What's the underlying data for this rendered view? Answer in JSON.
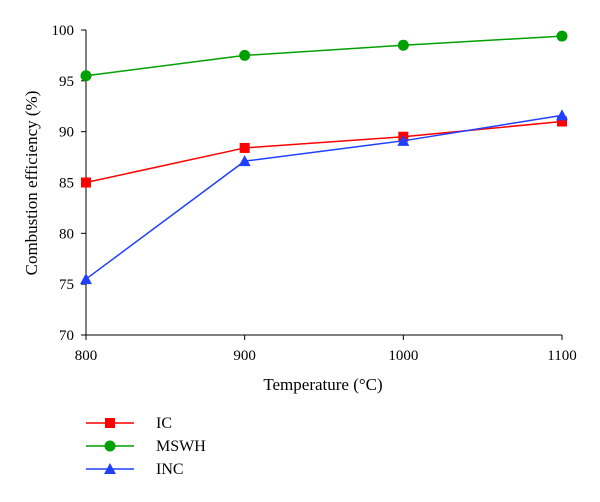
{
  "chart_data": {
    "type": "line",
    "title": "",
    "xlabel": "Temperature (°C)",
    "ylabel": "Combustion efficiency (%)",
    "x": [
      800,
      900,
      1000,
      1100
    ],
    "xlim": [
      800,
      1100
    ],
    "ylim": [
      70,
      100
    ],
    "xticks": [
      "800",
      "900",
      "1000",
      "1100"
    ],
    "yticks": [
      "70",
      "75",
      "80",
      "85",
      "90",
      "95",
      "100"
    ],
    "grid": false,
    "legend_position": "bottom-left",
    "series": [
      {
        "name": "IC",
        "color": "#ff0000",
        "marker": "square",
        "values": [
          85.0,
          88.4,
          89.5,
          91.0
        ]
      },
      {
        "name": "MSWH",
        "color": "#00a000",
        "marker": "circle",
        "values": [
          95.5,
          97.5,
          98.5,
          99.4
        ]
      },
      {
        "name": "INC",
        "color": "#2040ff",
        "marker": "triangle",
        "values": [
          75.5,
          87.1,
          89.1,
          91.6
        ]
      }
    ]
  }
}
